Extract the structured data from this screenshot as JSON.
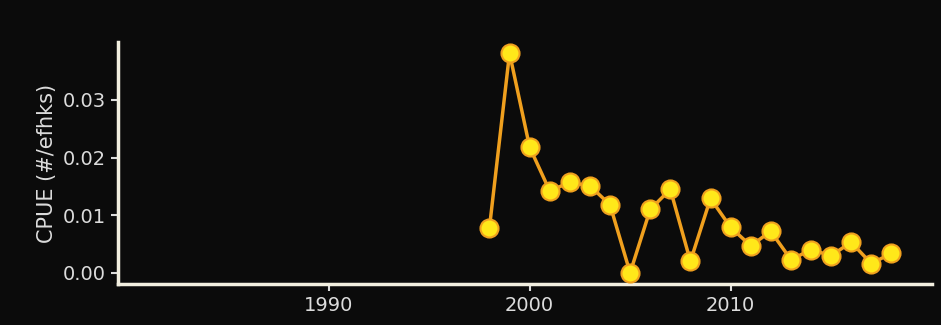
{
  "chart_data": {
    "type": "line",
    "y_label": "CPUE (#/efhks)",
    "x": [
      1998,
      1999,
      2000,
      2001,
      2002,
      2003,
      2004,
      2005,
      2006,
      2007,
      2008,
      2009,
      2010,
      2011,
      2012,
      2013,
      2014,
      2015,
      2016,
      2017,
      2018
    ],
    "values": [
      0.0078,
      0.0381,
      0.0218,
      0.0142,
      0.0157,
      0.0151,
      0.0118,
      0.0,
      0.011,
      0.0145,
      0.002,
      0.0129,
      0.0079,
      0.0047,
      0.0072,
      0.0023,
      0.004,
      0.003,
      0.0053,
      0.0016,
      0.0034
    ],
    "color": "#f0a01e",
    "marker": "o",
    "line_style": "solid",
    "xlim": [
      1979.5,
      2020
    ],
    "xticks": [
      1990,
      2000,
      2010
    ],
    "ylim": [
      -0.002,
      0.04
    ],
    "yticks": [
      {
        "value": 0.0,
        "label": "0.00"
      },
      0.01,
      0.02,
      0.03
    ],
    "grid": false
  }
}
